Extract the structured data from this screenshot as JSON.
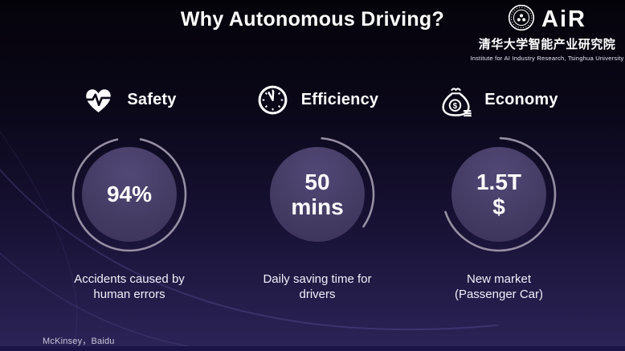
{
  "title": "Why Autonomous Driving?",
  "logo": {
    "emblem_icon": "tsinghua-emblem-icon",
    "wordmark": "AiR",
    "chinese_name": "清华大学智能产业研究院",
    "english_name": "Institute for AI Industry Research, Tsinghua University"
  },
  "columns": [
    {
      "key": "safety",
      "icon": "heart-pulse-icon",
      "label": "Safety",
      "value_line1": "94%",
      "value_line2": "",
      "caption_line1": "Accidents caused by",
      "caption_line2": "human errors",
      "ring": {
        "start": -78,
        "sweep": 336
      }
    },
    {
      "key": "efficiency",
      "icon": "clock-icon",
      "label": "Efficiency",
      "value_line1": "50",
      "value_line2": "mins",
      "caption_line1": "Daily saving time for",
      "caption_line2": "drivers",
      "ring": {
        "start": -85,
        "sweep": 120
      }
    },
    {
      "key": "economy",
      "icon": "money-bag-icon",
      "label": "Economy",
      "value_line1": "1.5T",
      "value_line2": "$",
      "caption_line1": "New market",
      "caption_line2": "(Passenger Car)",
      "ring": {
        "start": -88,
        "sweep": 250
      }
    }
  ],
  "source": "McKinsey，Baidu",
  "colors": {
    "background_top": "#05030a",
    "background_bottom": "#2c2458",
    "bottom_bar": "#1a1546",
    "ring_stroke": "#968fa4",
    "circle_fill": "#453c64",
    "text": "#ffffff"
  }
}
